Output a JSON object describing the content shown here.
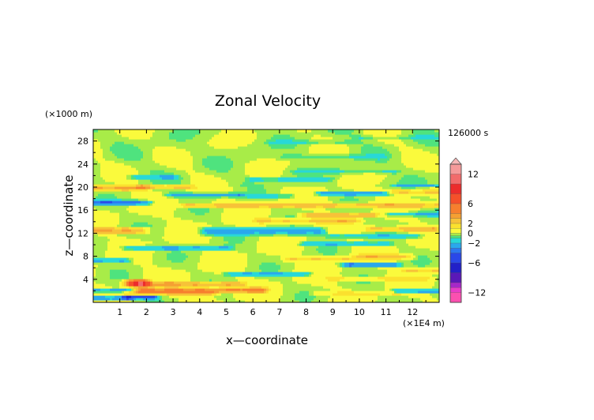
{
  "chart_data": {
    "type": "heatmap",
    "title": "Zonal Velocity",
    "xlabel": "x—coordinate",
    "ylabel": "z—coordinate",
    "x_unit": "(×1E4 m)",
    "y_unit": "(×1000 m)",
    "time_label": "126000 s",
    "xlim": [
      0,
      13
    ],
    "ylim": [
      0,
      30
    ],
    "x_ticks": [
      "1",
      "2",
      "3",
      "4",
      "5",
      "6",
      "7",
      "8",
      "9",
      "10",
      "11",
      "12"
    ],
    "y_ticks": [
      "4",
      "8",
      "12",
      "16",
      "20",
      "24",
      "28"
    ],
    "colorbar": {
      "labels": [
        "12",
        "6",
        "2",
        "0",
        "−2",
        "−6",
        "−12"
      ],
      "levels": [
        {
          "value": 14,
          "color": "#f7b6b6"
        },
        {
          "value": 12,
          "color": "#f59a9a"
        },
        {
          "value": 10,
          "color": "#f26b6b"
        },
        {
          "value": 8,
          "color": "#ec2c2c"
        },
        {
          "value": 6,
          "color": "#f5502a"
        },
        {
          "value": 4,
          "color": "#f77f2e"
        },
        {
          "value": 3,
          "color": "#f5a032"
        },
        {
          "value": 2,
          "color": "#f7c238"
        },
        {
          "value": 1,
          "color": "#fbe12e"
        },
        {
          "value": 0,
          "color": "#fafa3c"
        },
        {
          "value": -0.5,
          "color": "#a8ec48"
        },
        {
          "value": -1,
          "color": "#4fe37e"
        },
        {
          "value": -2,
          "color": "#28d8d8"
        },
        {
          "value": -3,
          "color": "#2aa8ec"
        },
        {
          "value": -4,
          "color": "#2c78f0"
        },
        {
          "value": -6,
          "color": "#2a48e8"
        },
        {
          "value": -8,
          "color": "#2220c8"
        },
        {
          "value": -10,
          "color": "#5a18b8"
        },
        {
          "value": -11,
          "color": "#a628c8"
        },
        {
          "value": -12,
          "color": "#e83cc8"
        },
        {
          "value": -14,
          "color": "#fb50b0"
        }
      ]
    },
    "bands": [
      {
        "z": 0.8,
        "thick": 0.8,
        "x0": 0.0,
        "x1": 1.3,
        "v": -3.5
      },
      {
        "z": 2.2,
        "thick": 0.8,
        "x0": 0.0,
        "x1": 1.2,
        "v": -2.5
      },
      {
        "z": 1.6,
        "thick": 1.0,
        "x0": 1.4,
        "x1": 4.5,
        "v": 2.5
      },
      {
        "z": 2.2,
        "thick": 1.0,
        "x0": 1.8,
        "x1": 6.3,
        "v": 4.2
      },
      {
        "z": 3.2,
        "thick": 0.9,
        "x0": 1.6,
        "x1": 5.5,
        "v": 3.2
      },
      {
        "z": 1.0,
        "thick": 0.8,
        "x0": 1.4,
        "x1": 2.2,
        "v": -4.5
      },
      {
        "z": 3.4,
        "thick": 1.4,
        "x0": 1.4,
        "x1": 1.9,
        "v": 7.0
      },
      {
        "z": 5.0,
        "thick": 0.8,
        "x0": 5.2,
        "x1": 8.0,
        "v": -2.0
      },
      {
        "z": 2.0,
        "thick": 0.9,
        "x0": 11.5,
        "x1": 13.0,
        "v": -2.5
      },
      {
        "z": 1.6,
        "thick": 0.8,
        "x0": 8.5,
        "x1": 11.5,
        "v": 1.2
      },
      {
        "z": 4.2,
        "thick": 0.9,
        "x0": 9.0,
        "x1": 12.5,
        "v": 1.5
      },
      {
        "z": 6.6,
        "thick": 0.9,
        "x0": 9.6,
        "x1": 11.3,
        "v": -3.2
      },
      {
        "z": 5.6,
        "thick": 0.8,
        "x0": 11.8,
        "x1": 13.0,
        "v": 2.2
      },
      {
        "z": 7.3,
        "thick": 0.9,
        "x0": 0.0,
        "x1": 1.2,
        "v": -2.0
      },
      {
        "z": 7.6,
        "thick": 0.8,
        "x0": 7.4,
        "x1": 9.6,
        "v": 2.0
      },
      {
        "z": 8.0,
        "thick": 0.9,
        "x0": 10.0,
        "x1": 11.8,
        "v": 2.4
      },
      {
        "z": 9.5,
        "thick": 1.0,
        "x0": 1.3,
        "x1": 5.0,
        "v": -2.0
      },
      {
        "z": 10.2,
        "thick": 0.8,
        "x0": 8.0,
        "x1": 11.0,
        "v": -1.6
      },
      {
        "z": 12.5,
        "thick": 1.3,
        "x0": 0.0,
        "x1": 1.8,
        "v": 3.2
      },
      {
        "z": 12.4,
        "thick": 1.4,
        "x0": 4.2,
        "x1": 8.5,
        "v": -2.4
      },
      {
        "z": 11.6,
        "thick": 0.8,
        "x0": 9.0,
        "x1": 12.2,
        "v": -1.5
      },
      {
        "z": 12.8,
        "thick": 1.0,
        "x0": 10.4,
        "x1": 12.8,
        "v": 2.6
      },
      {
        "z": 14.2,
        "thick": 0.9,
        "x0": 6.3,
        "x1": 9.8,
        "v": 2.4
      },
      {
        "z": 15.2,
        "thick": 0.8,
        "x0": 8.0,
        "x1": 10.5,
        "v": 2.8
      },
      {
        "z": 15.4,
        "thick": 0.8,
        "x0": 11.3,
        "x1": 13.0,
        "v": -2.2
      },
      {
        "z": 16.9,
        "thick": 1.0,
        "x0": 3.5,
        "x1": 13.0,
        "v": 2.5
      },
      {
        "z": 17.4,
        "thick": 0.9,
        "x0": 0.0,
        "x1": 2.0,
        "v": -3.5
      },
      {
        "z": 18.7,
        "thick": 0.8,
        "x0": 3.0,
        "x1": 5.5,
        "v": -2.5
      },
      {
        "z": 19.0,
        "thick": 0.8,
        "x0": 8.6,
        "x1": 11.0,
        "v": -2.6
      },
      {
        "z": 19.9,
        "thick": 1.0,
        "x0": 0.0,
        "x1": 1.8,
        "v": 3.2
      },
      {
        "z": 20.1,
        "thick": 0.9,
        "x0": 1.8,
        "x1": 3.6,
        "v": 2.4
      },
      {
        "z": 18.5,
        "thick": 0.6,
        "x0": 6.0,
        "x1": 7.4,
        "v": -1.5
      },
      {
        "z": 19.2,
        "thick": 0.9,
        "x0": 11.2,
        "x1": 13.0,
        "v": 2.2
      },
      {
        "z": 20.4,
        "thick": 0.6,
        "x0": 11.5,
        "x1": 12.8,
        "v": -1.8
      },
      {
        "z": 21.8,
        "thick": 0.7,
        "x0": 1.5,
        "x1": 3.0,
        "v": -1.6
      },
      {
        "z": 21.4,
        "thick": 0.8,
        "x0": 6.0,
        "x1": 8.8,
        "v": -1.2
      },
      {
        "z": 22.8,
        "thick": 0.8,
        "x0": 7.7,
        "x1": 11.3,
        "v": -1.0
      },
      {
        "z": 25.3,
        "thick": 0.9,
        "x0": 7.2,
        "x1": 10.8,
        "v": -0.8
      },
      {
        "z": 27.8,
        "thick": 0.8,
        "x0": 6.7,
        "x1": 9.8,
        "v": -0.8
      },
      {
        "z": 28.6,
        "thick": 0.8,
        "x0": 10.0,
        "x1": 13.0,
        "v": -0.7
      }
    ]
  }
}
